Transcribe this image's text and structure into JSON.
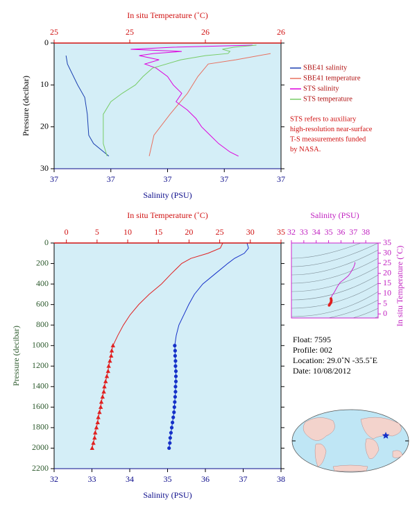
{
  "chart_data": [
    {
      "type": "line",
      "title": "In situ Temperature (˚C)",
      "xlabel": "Salinity (PSU)",
      "ylabel": "Pressure (decibar)",
      "xlim": [
        36.6,
        37.4
      ],
      "xticks": [
        {
          "value": 36.6,
          "label": "37"
        },
        {
          "value": 36.8,
          "label": "37"
        },
        {
          "value": 37.0,
          "label": "37"
        },
        {
          "value": 37.2,
          "label": "37"
        },
        {
          "value": 37.4,
          "label": "37"
        }
      ],
      "x2lim": [
        25.0,
        26.2
      ],
      "x2ticks": [
        {
          "value": 25.0,
          "label": "25"
        },
        {
          "value": 25.4,
          "label": "25"
        },
        {
          "value": 25.8,
          "label": "26"
        },
        {
          "value": 26.2,
          "label": "26"
        }
      ],
      "ylim": [
        0,
        30
      ],
      "yticks": [
        0,
        10,
        20,
        30
      ],
      "y_inverted": true,
      "background": "#d4eef7",
      "legend": "right",
      "series": [
        {
          "name": "SBE41 salinity",
          "color": "#1a3fb0",
          "axis": "x",
          "y": [
            3,
            5,
            10,
            13,
            17,
            22,
            24,
            27
          ],
          "x": [
            36.642,
            36.647,
            36.683,
            36.708,
            36.717,
            36.722,
            36.739,
            36.793
          ]
        },
        {
          "name": "SBE41 temperature",
          "color": "#e8705f",
          "axis": "x2",
          "y": [
            2.5,
            4,
            5,
            8,
            12,
            17,
            22,
            27
          ],
          "x": [
            26.145,
            25.961,
            25.815,
            25.76,
            25.705,
            25.613,
            25.528,
            25.503
          ]
        },
        {
          "name": "STS salinity",
          "color": "#dd00dd",
          "axis": "x",
          "y": [
            0.5,
            1,
            1.5,
            2,
            2.5,
            3,
            4,
            5,
            6,
            8,
            10,
            12,
            14,
            16,
            18,
            20,
            22,
            24,
            26,
            27
          ],
          "x": [
            37.3,
            37.02,
            36.87,
            37.05,
            36.95,
            36.9,
            36.97,
            36.92,
            36.96,
            37.0,
            37.02,
            37.05,
            37.03,
            37.07,
            37.1,
            37.12,
            37.15,
            37.18,
            37.22,
            37.25
          ]
        },
        {
          "name": "STS temperature",
          "color": "#77cc66",
          "axis": "x2",
          "y": [
            0.5,
            1,
            1.5,
            2,
            2.5,
            3,
            4,
            6,
            8,
            10,
            12,
            14,
            17,
            20,
            24,
            27
          ],
          "x": [
            26.07,
            25.95,
            25.89,
            25.93,
            25.92,
            25.8,
            25.67,
            25.52,
            25.47,
            25.43,
            25.36,
            25.3,
            25.26,
            25.26,
            25.26,
            25.28
          ]
        }
      ],
      "note": [
        "STS refers to auxiliary",
        "high-resolution near-surface",
        "T-S measurements funded",
        "by NASA."
      ]
    },
    {
      "type": "line",
      "title": "In situ Temperature (˚C)",
      "xlabel": "Salinity (PSU)",
      "ylabel": "Pressure (decibar)",
      "xlim": [
        32,
        38
      ],
      "xticks": [
        32,
        33,
        34,
        35,
        36,
        37,
        38
      ],
      "x2lim": [
        -2,
        35
      ],
      "x2ticks": [
        0,
        5,
        10,
        15,
        20,
        25,
        30,
        35
      ],
      "ylim": [
        0,
        2200
      ],
      "yticks": [
        0,
        200,
        400,
        600,
        800,
        1000,
        1200,
        1400,
        1600,
        1800,
        2000,
        2200
      ],
      "y_inverted": true,
      "background": "#d4eef7",
      "series": [
        {
          "color": "#e02020",
          "axis": "x2",
          "marker": null,
          "y": [
            0,
            50,
            100,
            150,
            200,
            300,
            400,
            500,
            600,
            700,
            800,
            900,
            1000
          ],
          "x": [
            25.5,
            25.1,
            23.1,
            20.3,
            18.8,
            17.1,
            15.5,
            13.5,
            11.8,
            10.4,
            9.3,
            8.4,
            7.6
          ]
        },
        {
          "color": "#e02020",
          "axis": "x2",
          "marker": "triangle",
          "y": [
            1000,
            1050,
            1100,
            1150,
            1200,
            1250,
            1300,
            1350,
            1400,
            1450,
            1500,
            1550,
            1600,
            1650,
            1700,
            1750,
            1800,
            1850,
            1900,
            1950,
            2000
          ],
          "x": [
            7.6,
            7.4,
            7.3,
            7.1,
            6.9,
            6.8,
            6.6,
            6.4,
            6.2,
            6.1,
            5.9,
            5.7,
            5.6,
            5.4,
            5.2,
            5.1,
            4.9,
            4.7,
            4.6,
            4.4,
            4.2
          ]
        },
        {
          "color": "#1530c8",
          "axis": "x",
          "marker": null,
          "y": [
            0,
            50,
            100,
            150,
            200,
            300,
            400,
            500,
            600,
            700,
            800,
            900,
            1000
          ],
          "x": [
            37.1,
            37.14,
            37.03,
            36.77,
            36.59,
            36.26,
            35.93,
            35.71,
            35.56,
            35.43,
            35.3,
            35.23,
            35.19
          ]
        },
        {
          "color": "#1530c8",
          "axis": "x",
          "marker": "circle",
          "y": [
            1000,
            1050,
            1100,
            1150,
            1200,
            1250,
            1300,
            1350,
            1400,
            1450,
            1500,
            1550,
            1600,
            1650,
            1700,
            1750,
            1800,
            1850,
            1900,
            1950,
            2000
          ],
          "x": [
            35.19,
            35.2,
            35.2,
            35.21,
            35.21,
            35.22,
            35.22,
            35.22,
            35.21,
            35.21,
            35.2,
            35.19,
            35.18,
            35.17,
            35.15,
            35.13,
            35.11,
            35.09,
            35.07,
            35.06,
            35.04
          ]
        }
      ]
    },
    {
      "type": "scatter",
      "title": "Salinity (PSU)",
      "ylabel": "In situ Temperature (˚C)",
      "xlim": [
        32,
        39
      ],
      "xticks": [
        32,
        33,
        34,
        35,
        36,
        37,
        38
      ],
      "ylim": [
        -2,
        35
      ],
      "yticks": [
        0,
        5,
        10,
        15,
        20,
        25,
        30,
        35
      ],
      "color": "#cc22cc",
      "background": "#d4eef7"
    }
  ],
  "float_info": [
    "Float:  7595",
    "Profile:  002",
    "Location:  29.0˚N  -35.5˚E",
    "Date:  10/08/2012"
  ]
}
